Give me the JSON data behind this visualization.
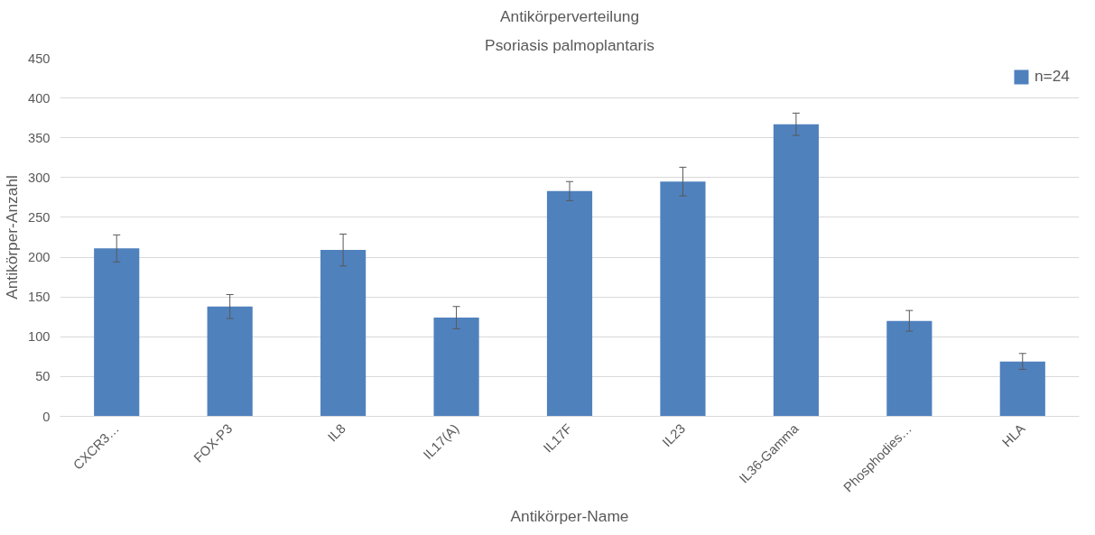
{
  "chart_data": {
    "type": "bar",
    "title": "Antikörperverteilung",
    "subtitle": "Psoriasis palmoplantaris",
    "xlabel": "Antikörper-Name",
    "ylabel": "Antikörper-Anzahl",
    "categories": [
      "CXCR3…",
      "FOX-P3",
      "IL8",
      "IL17(A)",
      "IL17F",
      "IL23",
      "IL36-Gamma",
      "Phosphodies…",
      "HLA"
    ],
    "series": [
      {
        "name": "n=24",
        "color": "#4f81bd",
        "values": [
          211,
          138,
          209,
          124,
          283,
          295,
          367,
          120,
          69
        ],
        "errors": [
          17,
          15,
          20,
          14,
          12,
          18,
          14,
          13,
          10
        ]
      }
    ],
    "ylim": [
      0,
      450
    ],
    "yticks": [
      0,
      50,
      100,
      150,
      200,
      250,
      300,
      350,
      400,
      450
    ],
    "grid": "y",
    "legend": "top right"
  }
}
